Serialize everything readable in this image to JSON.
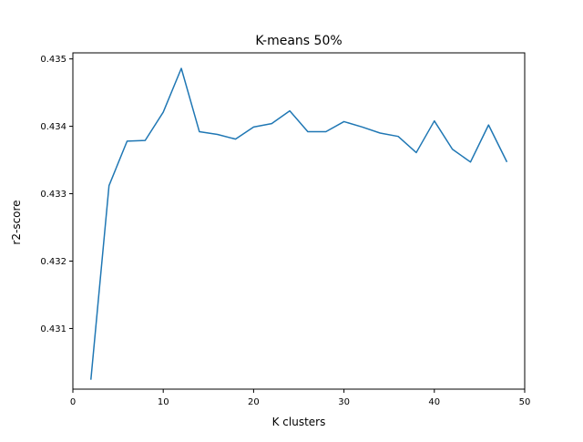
{
  "chart_data": {
    "type": "line",
    "title": "K-means 50%",
    "xlabel": "K clusters",
    "ylabel": "r2-score",
    "xlim": [
      0,
      50
    ],
    "ylim": [
      0.4301,
      0.43509
    ],
    "xticks": [
      0,
      10,
      20,
      30,
      40,
      50
    ],
    "yticks": [
      0.431,
      0.432,
      0.433,
      0.434,
      0.435
    ],
    "xtick_labels": [
      "0",
      "10",
      "20",
      "30",
      "40",
      "50"
    ],
    "ytick_labels": [
      "0.431",
      "0.432",
      "0.433",
      "0.434",
      "0.435"
    ],
    "grid": false,
    "line_color": "#1f77b4",
    "series": [
      {
        "x": [
          2,
          4,
          6,
          8,
          10,
          12,
          14,
          16,
          18,
          20,
          22,
          24,
          26,
          28,
          30,
          32,
          34,
          36,
          38,
          40,
          42,
          44,
          46,
          48
        ],
        "values": [
          0.43025,
          0.43312,
          0.43378,
          0.43379,
          0.43421,
          0.43486,
          0.43392,
          0.43388,
          0.43381,
          0.43399,
          0.43404,
          0.43423,
          0.43392,
          0.43392,
          0.43407,
          0.43399,
          0.4339,
          0.43385,
          0.43361,
          0.43408,
          0.43366,
          0.43347,
          0.43402,
          0.43348
        ]
      }
    ]
  }
}
